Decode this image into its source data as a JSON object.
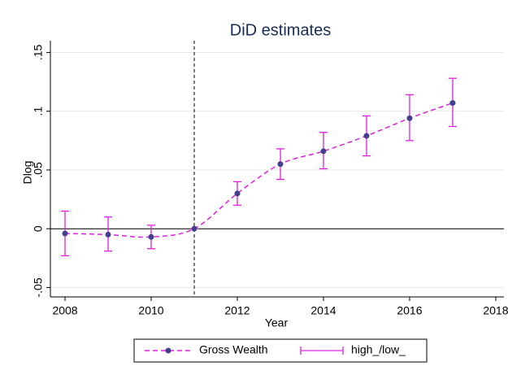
{
  "chart_data": {
    "type": "line",
    "title": "DiD estimates",
    "x_label": "Year",
    "y_label": "Dlog",
    "x": [
      2008,
      2009,
      2010,
      2011,
      2012,
      2013,
      2014,
      2015,
      2016,
      2017
    ],
    "series": [
      {
        "name": "Gross Wealth",
        "color": "#e020e0",
        "marker_color": "#42408a",
        "values": [
          -0.004,
          -0.005,
          -0.007,
          0,
          0.03,
          0.055,
          0.066,
          0.079,
          0.094,
          0.107
        ]
      },
      {
        "name": "high_/low_",
        "color": "#e020e0",
        "low": [
          -0.023,
          -0.019,
          -0.017,
          0,
          0.02,
          0.042,
          0.051,
          0.062,
          0.075,
          0.087
        ],
        "high": [
          0.015,
          0.01,
          0.003,
          0,
          0.04,
          0.068,
          0.082,
          0.096,
          0.114,
          0.128
        ]
      }
    ],
    "xlim": [
      2007.66,
      2018.19
    ],
    "ylim": [
      -0.058,
      0.16
    ],
    "xticks": [
      2008,
      2010,
      2012,
      2014,
      2016,
      2018
    ],
    "yticks": [
      {
        "value": -0.05,
        "label": "-.05"
      },
      0,
      {
        "value": 0.05,
        "label": ".05"
      },
      {
        "value": 0.1,
        "label": ".1"
      },
      {
        "value": 0.15,
        "label": ".15"
      }
    ],
    "xline": 2011,
    "yline": 0,
    "grid": true
  }
}
